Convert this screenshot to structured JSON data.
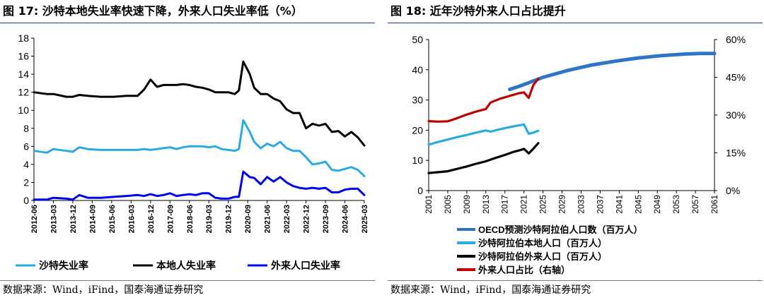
{
  "figures": [
    {
      "title": "图 17: 沙特本地失业率快速下降，外来人口失业率低（%）",
      "source": "数据来源：Wind，iFind，国泰海通证券研究"
    },
    {
      "title": "图 18: 近年沙特外来人口占比提升",
      "source": "数据来源：Wind，iFind，国泰海通证券研究"
    }
  ],
  "chart_data": [
    {
      "type": "line",
      "title": "图 17: 沙特本地失业率快速下降，外来人口失业率低（%）",
      "xlabel": "",
      "ylabel": "",
      "ylim": [
        0,
        18
      ],
      "yticks": [
        0,
        2,
        4,
        6,
        8,
        10,
        12,
        14,
        16,
        18
      ],
      "xlim": [
        2012.42,
        2025.17
      ],
      "xtick_labels": [
        "2012-06",
        "2013-03",
        "2013-12",
        "2014-09",
        "2015-06",
        "2016-03",
        "2016-12",
        "2017-09",
        "2018-06",
        "2019-03",
        "2019-12",
        "2020-09",
        "2021-06",
        "2022-03",
        "2022-12",
        "2023-09",
        "2024-06",
        "2025-03"
      ],
      "legend_position": "bottom",
      "grid": false,
      "series": [
        {
          "name": "沙特失业率",
          "color": "#29ABE2",
          "x": [
            2012.42,
            2012.92,
            2013.17,
            2013.67,
            2013.92,
            2014.17,
            2014.5,
            2015.0,
            2015.5,
            2016.0,
            2016.42,
            2016.67,
            2016.92,
            2017.17,
            2017.42,
            2017.67,
            2017.92,
            2018.17,
            2018.42,
            2018.67,
            2018.92,
            2019.17,
            2019.42,
            2019.67,
            2019.92,
            2020.17,
            2020.33,
            2020.5,
            2020.75,
            2020.92,
            2021.17,
            2021.42,
            2021.67,
            2021.92,
            2022.17,
            2022.42,
            2022.67,
            2022.92,
            2023.17,
            2023.42,
            2023.67,
            2023.92,
            2024.17,
            2024.42,
            2024.67,
            2024.92,
            2025.17
          ],
          "values": [
            5.5,
            5.3,
            5.7,
            5.5,
            5.4,
            5.9,
            5.7,
            5.6,
            5.6,
            5.6,
            5.6,
            5.7,
            5.6,
            5.7,
            5.8,
            5.9,
            5.7,
            5.9,
            6.0,
            6.0,
            6.0,
            5.9,
            6.0,
            5.7,
            5.6,
            5.5,
            5.7,
            8.9,
            7.6,
            6.5,
            5.8,
            6.3,
            6.0,
            6.5,
            5.8,
            5.5,
            5.5,
            4.8,
            4.0,
            4.1,
            4.3,
            3.4,
            3.3,
            3.5,
            3.7,
            3.4,
            2.7
          ]
        },
        {
          "name": "本地人失业率",
          "color": "#000000",
          "x": [
            2012.42,
            2012.92,
            2013.17,
            2013.67,
            2013.92,
            2014.17,
            2014.5,
            2015.0,
            2015.5,
            2016.0,
            2016.42,
            2016.67,
            2016.92,
            2017.17,
            2017.42,
            2017.67,
            2017.92,
            2018.17,
            2018.42,
            2018.67,
            2018.92,
            2019.17,
            2019.42,
            2019.67,
            2019.92,
            2020.17,
            2020.33,
            2020.5,
            2020.75,
            2020.92,
            2021.17,
            2021.42,
            2021.67,
            2021.92,
            2022.17,
            2022.42,
            2022.67,
            2022.92,
            2023.17,
            2023.42,
            2023.67,
            2023.92,
            2024.17,
            2024.42,
            2024.67,
            2024.92,
            2025.17
          ],
          "values": [
            12.0,
            11.8,
            11.8,
            11.5,
            11.5,
            11.7,
            11.6,
            11.5,
            11.5,
            11.6,
            11.6,
            12.3,
            13.4,
            12.6,
            12.8,
            12.8,
            12.8,
            12.9,
            12.8,
            12.6,
            12.5,
            12.3,
            12.0,
            12.0,
            12.0,
            11.8,
            12.2,
            15.4,
            14.0,
            12.5,
            11.8,
            11.8,
            11.3,
            11.0,
            10.1,
            9.7,
            9.7,
            8.0,
            8.5,
            8.3,
            8.5,
            7.6,
            7.7,
            7.1,
            7.6,
            7.0,
            6.1
          ]
        },
        {
          "name": "外来人口失业率",
          "color": "#0000EE",
          "x": [
            2012.42,
            2012.92,
            2013.17,
            2013.67,
            2013.92,
            2014.17,
            2014.5,
            2015.0,
            2015.5,
            2016.0,
            2016.42,
            2016.67,
            2016.92,
            2017.17,
            2017.42,
            2017.67,
            2017.92,
            2018.17,
            2018.42,
            2018.67,
            2018.92,
            2019.17,
            2019.42,
            2019.67,
            2019.92,
            2020.17,
            2020.33,
            2020.5,
            2020.75,
            2020.92,
            2021.17,
            2021.42,
            2021.67,
            2021.92,
            2022.17,
            2022.42,
            2022.67,
            2022.92,
            2023.17,
            2023.42,
            2023.67,
            2023.92,
            2024.17,
            2024.42,
            2024.67,
            2024.92,
            2025.17
          ],
          "values": [
            0.1,
            0.1,
            0.3,
            0.2,
            0.1,
            0.6,
            0.3,
            0.3,
            0.4,
            0.5,
            0.6,
            0.5,
            0.7,
            0.5,
            0.6,
            0.8,
            0.5,
            0.6,
            0.7,
            0.6,
            0.8,
            0.8,
            0.3,
            0.2,
            0.2,
            0.4,
            0.4,
            3.2,
            2.6,
            2.5,
            1.8,
            2.6,
            2.1,
            2.6,
            2.0,
            1.6,
            1.4,
            1.3,
            1.4,
            1.3,
            1.4,
            0.9,
            0.9,
            1.2,
            1.3,
            1.3,
            0.6
          ]
        }
      ]
    },
    {
      "type": "line",
      "title": "图 18: 近年沙特外来人口占比提升",
      "xlabel": "",
      "ylabel": "",
      "ylim": [
        0,
        50
      ],
      "yticks": [
        0,
        10,
        20,
        30,
        40,
        50
      ],
      "y2lim": [
        0,
        60
      ],
      "y2ticks": [
        "0%",
        "15%",
        "30%",
        "45%",
        "60%"
      ],
      "xlim": [
        2001,
        2061
      ],
      "xtick_labels": [
        "2001",
        "2005",
        "2009",
        "2013",
        "2017",
        "2021",
        "2025",
        "2029",
        "2033",
        "2037",
        "2041",
        "2045",
        "2049",
        "2053",
        "2057",
        "2061"
      ],
      "legend_position": "bottom",
      "grid": false,
      "series": [
        {
          "name": "OECD预测沙特阿拉伯人口数（百万人）",
          "axis": "left",
          "color": "#2E75C8",
          "x": [
            2018,
            2020,
            2022,
            2025,
            2030,
            2035,
            2040,
            2045,
            2050,
            2055,
            2058,
            2061
          ],
          "values": [
            33.5,
            34.5,
            35.7,
            37.5,
            39.7,
            41.5,
            42.8,
            43.9,
            44.7,
            45.2,
            45.4,
            45.4
          ]
        },
        {
          "name": "沙特阿拉伯本地人口（百万人）",
          "axis": "left",
          "color": "#29ABE2",
          "x": [
            2001,
            2003,
            2005,
            2007,
            2009,
            2011,
            2013,
            2014,
            2016,
            2018,
            2019,
            2020,
            2021,
            2022,
            2023,
            2024
          ],
          "values": [
            15.2,
            16.1,
            16.9,
            17.7,
            18.4,
            19.2,
            19.9,
            19.5,
            20.3,
            21.0,
            21.3,
            21.6,
            21.9,
            18.8,
            19.2,
            19.8
          ]
        },
        {
          "name": "沙特阿拉伯外来人口（百万人）",
          "axis": "left",
          "color": "#000000",
          "x": [
            2001,
            2003,
            2005,
            2007,
            2009,
            2011,
            2013,
            2015,
            2017,
            2019,
            2020,
            2021,
            2022,
            2023,
            2024
          ],
          "values": [
            5.8,
            6.1,
            6.4,
            7.2,
            8.0,
            8.9,
            9.7,
            10.8,
            11.8,
            12.9,
            13.3,
            13.8,
            12.3,
            13.9,
            15.7
          ]
        },
        {
          "name": "外来人口占比（右轴）",
          "axis": "right",
          "color": "#C00000",
          "x": [
            2001,
            2003,
            2005,
            2007,
            2009,
            2011,
            2013,
            2014,
            2016,
            2018,
            2020,
            2021,
            2022,
            2023,
            2024
          ],
          "values": [
            27.6,
            27.4,
            27.5,
            28.8,
            30.2,
            31.4,
            32.4,
            35.0,
            36.5,
            37.6,
            38.7,
            39.0,
            36.8,
            42.0,
            44.4
          ]
        }
      ]
    }
  ]
}
